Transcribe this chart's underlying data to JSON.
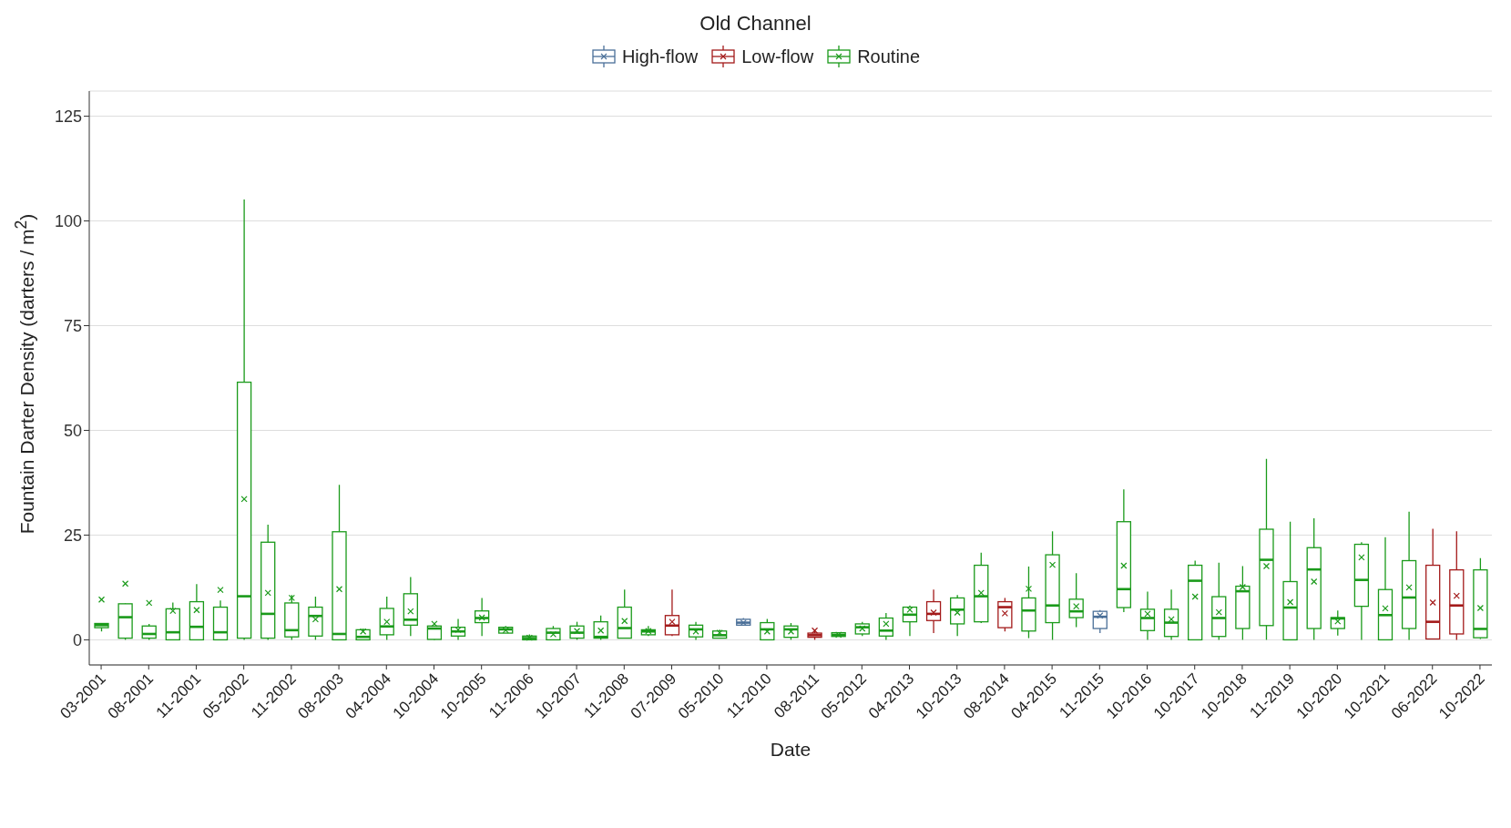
{
  "chart_data": {
    "type": "box",
    "title": "Old Channel",
    "xlabel": "Date",
    "ylabel": "Fountain Darter Density (darters / m$^{2}$)",
    "categories": [
      "03-2001",
      null,
      "08-2001",
      null,
      "11-2001",
      null,
      "05-2002",
      null,
      "11-2002",
      null,
      "08-2003",
      null,
      "04-2004",
      null,
      "10-2004",
      null,
      "10-2005",
      null,
      "11-2006",
      null,
      "10-2007",
      null,
      "11-2008",
      null,
      "07-2009",
      null,
      "05-2010",
      null,
      "11-2010",
      null,
      "08-2011",
      null,
      "05-2012",
      null,
      "04-2013",
      null,
      "10-2013",
      null,
      "08-2014",
      null,
      "04-2015",
      null,
      "11-2015",
      null,
      "10-2016",
      null,
      "10-2017",
      null,
      "10-2018",
      null,
      "11-2019",
      null,
      "10-2020",
      null,
      "10-2021",
      null,
      "06-2022",
      null,
      "10-2022"
    ],
    "ylim": [
      -6,
      131
    ],
    "yticks": [
      0,
      25,
      50,
      75,
      100,
      125
    ],
    "grid": "y",
    "legend": "top",
    "marker": "cross",
    "series": [
      {
        "name": "High-flow",
        "color": "#4a6f98",
        "boxes": [
          null,
          null,
          null,
          null,
          null,
          null,
          null,
          null,
          null,
          null,
          null,
          null,
          null,
          null,
          null,
          null,
          null,
          null,
          null,
          null,
          null,
          null,
          null,
          null,
          null,
          null,
          null,
          {
            "low": 3.5,
            "q1": 3.5,
            "median": 4.1,
            "q3": 4.9,
            "high": 5.2,
            "mean": 4.1
          },
          null,
          null,
          null,
          null,
          null,
          null,
          null,
          null,
          null,
          null,
          null,
          null,
          null,
          null,
          {
            "low": 1.6,
            "q1": 2.7,
            "median": 5.5,
            "q3": 6.8,
            "high": 7.1,
            "mean": 5.8
          },
          null,
          null,
          null,
          null,
          null,
          null,
          null,
          null,
          null,
          null,
          null,
          null,
          null,
          null,
          null,
          null
        ]
      },
      {
        "name": "Low-flow",
        "color": "#a31a1a",
        "boxes": [
          null,
          null,
          null,
          null,
          null,
          null,
          null,
          null,
          null,
          null,
          null,
          null,
          null,
          null,
          null,
          null,
          null,
          null,
          null,
          null,
          null,
          null,
          null,
          null,
          {
            "low": 0.9,
            "q1": 1.2,
            "median": 3.4,
            "q3": 5.8,
            "high": 12,
            "mean": 4.3
          },
          null,
          null,
          null,
          null,
          null,
          {
            "low": 0,
            "q1": 0.6,
            "median": 1.1,
            "q3": 1.6,
            "high": 2.4,
            "mean": 2.2
          },
          null,
          null,
          null,
          null,
          {
            "low": 1.6,
            "q1": 4.6,
            "median": 6.2,
            "q3": 9.1,
            "high": 12,
            "mean": 6.5
          },
          null,
          null,
          {
            "low": 2.0,
            "q1": 2.9,
            "median": 7.8,
            "q3": 9.1,
            "high": 10,
            "mean": 6.3
          },
          null,
          null,
          null,
          null,
          null,
          null,
          null,
          null,
          null,
          null,
          null,
          null,
          null,
          null,
          null,
          null,
          null,
          {
            "low": 0.2,
            "q1": 0.2,
            "median": 4.3,
            "q3": 17.8,
            "high": 26.5,
            "mean": 8.9
          },
          {
            "low": 0,
            "q1": 1.4,
            "median": 8.2,
            "q3": 16.7,
            "high": 25.9,
            "mean": 10.5
          },
          null
        ]
      },
      {
        "name": "Routine",
        "color": "#1a9a1a",
        "boxes": [
          {
            "low": 2.0,
            "q1": 2.9,
            "median": 3.5,
            "q3": 3.9,
            "high": 3.9,
            "mean": 9.6
          },
          {
            "low": 0,
            "q1": 0.4,
            "median": 5.4,
            "q3": 8.6,
            "high": 8.7,
            "mean": 13.4
          },
          {
            "low": 0,
            "q1": 0.4,
            "median": 1.4,
            "q3": 3.3,
            "high": 3.8,
            "mean": 8.8
          },
          {
            "low": 0,
            "q1": 0,
            "median": 1.8,
            "q3": 7.4,
            "high": 8.9,
            "mean": 6.9
          },
          {
            "low": 0,
            "q1": 0,
            "median": 3.1,
            "q3": 9.1,
            "high": 13.3,
            "mean": 7.1
          },
          {
            "low": 0,
            "q1": 0,
            "median": 1.8,
            "q3": 7.8,
            "high": 9.4,
            "mean": 11.9
          },
          {
            "low": 0,
            "q1": 0.4,
            "median": 10.4,
            "q3": 61.5,
            "high": 105.1,
            "mean": 33.6
          },
          {
            "low": 0,
            "q1": 0.4,
            "median": 6.2,
            "q3": 23.3,
            "high": 27.5,
            "mean": 11.2
          },
          {
            "low": 0,
            "q1": 0.7,
            "median": 2.3,
            "q3": 8.8,
            "high": 10.7,
            "mean": 10.0
          },
          {
            "low": 0,
            "q1": 0.9,
            "median": 5.7,
            "q3": 7.8,
            "high": 10.3,
            "mean": 4.9
          },
          {
            "low": 0,
            "q1": 0,
            "median": 1.4,
            "q3": 25.8,
            "high": 37,
            "mean": 12.1
          },
          {
            "low": 0,
            "q1": 0,
            "median": 0.7,
            "q3": 2.4,
            "high": 2.7,
            "mean": 2.0
          },
          {
            "low": 0,
            "q1": 1.2,
            "median": 3.2,
            "q3": 7.5,
            "high": 10.3,
            "mean": 4.3
          },
          {
            "low": 0.9,
            "q1": 3.5,
            "median": 4.8,
            "q3": 11.0,
            "high": 15,
            "mean": 6.8
          },
          {
            "low": 0,
            "q1": 0.1,
            "median": 2.7,
            "q3": 3.3,
            "high": 3.3,
            "mean": 3.8
          },
          {
            "low": 0,
            "q1": 0.9,
            "median": 2.0,
            "q3": 3.0,
            "high": 5.0,
            "mean": 2.4
          },
          {
            "low": 0.9,
            "q1": 4.1,
            "median": 5.2,
            "q3": 6.9,
            "high": 10,
            "mean": 5.3
          },
          {
            "low": 1.6,
            "q1": 1.6,
            "median": 2.5,
            "q3": 3.0,
            "high": 3.3,
            "mean": 2.3
          },
          {
            "low": 0,
            "q1": 0,
            "median": 0.4,
            "q3": 0.9,
            "high": 1.3,
            "mean": 0.5
          },
          {
            "low": 0,
            "q1": 0,
            "median": 1.7,
            "q3": 2.7,
            "high": 3.3,
            "mean": 1.3
          },
          {
            "low": 0,
            "q1": 0.4,
            "median": 1.7,
            "q3": 3.3,
            "high": 4.3,
            "mean": 2.1
          },
          {
            "low": 0,
            "q1": 0.4,
            "median": 0.7,
            "q3": 4.3,
            "high": 5.8,
            "mean": 2.2
          },
          {
            "low": 0.4,
            "q1": 0.4,
            "median": 2.8,
            "q3": 7.8,
            "high": 12,
            "mean": 4.5
          },
          {
            "low": 0.9,
            "q1": 1.2,
            "median": 2.0,
            "q3": 2.4,
            "high": 3.3,
            "mean": 2.1
          },
          null,
          {
            "low": 0,
            "q1": 0.7,
            "median": 2.5,
            "q3": 3.5,
            "high": 4.3,
            "mean": 2.0
          },
          {
            "low": 0.4,
            "q1": 0.4,
            "median": 1.1,
            "q3": 2.1,
            "high": 2.4,
            "mean": 1.7
          },
          null,
          {
            "low": 0,
            "q1": 0,
            "median": 2.5,
            "q3": 4.1,
            "high": 5,
            "mean": 2.0
          },
          {
            "low": 0,
            "q1": 0.6,
            "median": 2.5,
            "q3": 3.3,
            "high": 4.0,
            "mean": 2.0
          },
          null,
          {
            "low": 0.8,
            "q1": 0.8,
            "median": 1.2,
            "q3": 1.7,
            "high": 1.7,
            "mean": 1.2
          },
          {
            "low": 0.9,
            "q1": 1.4,
            "median": 3.0,
            "q3": 3.8,
            "high": 4.3,
            "mean": 2.7
          },
          {
            "low": 0,
            "q1": 0.9,
            "median": 2.2,
            "q3": 5.2,
            "high": 6.4,
            "mean": 3.8
          },
          {
            "low": 0.9,
            "q1": 4.3,
            "median": 6.0,
            "q3": 7.8,
            "high": 8.2,
            "mean": 7.2
          },
          null,
          {
            "low": 0.9,
            "q1": 3.8,
            "median": 7.2,
            "q3": 10,
            "high": 10.7,
            "mean": 6.5
          },
          {
            "low": 4.0,
            "q1": 4.3,
            "median": 10.4,
            "q3": 17.8,
            "high": 20.8,
            "mean": 11.2
          },
          null,
          {
            "low": 0.4,
            "q1": 2.1,
            "median": 7.0,
            "q3": 10,
            "high": 17.5,
            "mean": 12.2
          },
          {
            "low": 0,
            "q1": 4.1,
            "median": 8.2,
            "q3": 20.3,
            "high": 25.9,
            "mean": 17.9
          },
          {
            "low": 3.0,
            "q1": 5.3,
            "median": 6.8,
            "q3": 9.7,
            "high": 15.9,
            "mean": 8.0
          },
          null,
          {
            "low": 6.6,
            "q1": 7.7,
            "median": 12.1,
            "q3": 28.2,
            "high": 35.9,
            "mean": 17.7
          },
          {
            "low": 0,
            "q1": 2.2,
            "median": 5.2,
            "q3": 7.3,
            "high": 11.5,
            "mean": 6.2
          },
          {
            "low": 0,
            "q1": 0.8,
            "median": 4.1,
            "q3": 7.3,
            "high": 12,
            "mean": 4.9
          },
          {
            "low": 0,
            "q1": 0,
            "median": 14.1,
            "q3": 17.8,
            "high": 18.9,
            "mean": 10.3
          },
          {
            "low": 0,
            "q1": 0.8,
            "median": 5.2,
            "q3": 10.3,
            "high": 18.4,
            "mean": 6.6
          },
          {
            "low": 0,
            "q1": 2.7,
            "median": 11.6,
            "q3": 12.8,
            "high": 17.6,
            "mean": 12.6
          },
          {
            "low": 0,
            "q1": 3.4,
            "median": 19.1,
            "q3": 26.4,
            "high": 43.2,
            "mean": 17.6
          },
          {
            "low": 0,
            "q1": 0,
            "median": 7.7,
            "q3": 13.9,
            "high": 28.2,
            "mean": 9.0
          },
          {
            "low": 0,
            "q1": 2.7,
            "median": 16.8,
            "q3": 22.0,
            "high": 29.0,
            "mean": 13.9
          },
          {
            "low": 1.0,
            "q1": 2.7,
            "median": 5.1,
            "q3": 5.3,
            "high": 7.0,
            "mean": 4.4
          },
          {
            "low": 0,
            "q1": 8.0,
            "median": 14.3,
            "q3": 22.8,
            "high": 23.3,
            "mean": 19.7
          },
          {
            "low": 0,
            "q1": 0,
            "median": 5.9,
            "q3": 12.0,
            "high": 24.5,
            "mean": 7.5
          },
          {
            "low": 0,
            "q1": 2.7,
            "median": 10.1,
            "q3": 18.9,
            "high": 30.6,
            "mean": 12.5
          },
          null,
          null,
          {
            "low": 0.2,
            "q1": 0.5,
            "median": 2.6,
            "q3": 16.7,
            "high": 19.5,
            "mean": 7.6
          }
        ]
      }
    ]
  }
}
